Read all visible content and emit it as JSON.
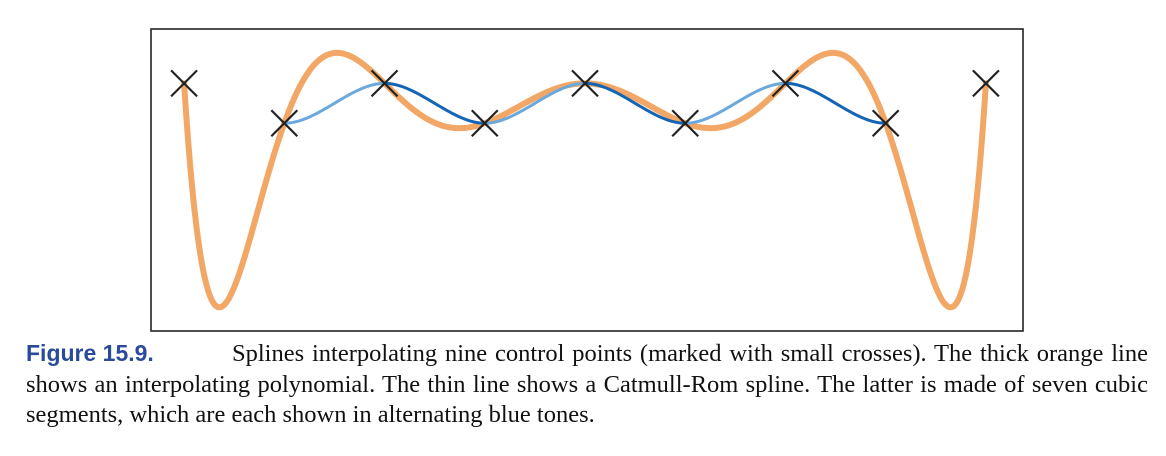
{
  "caption": {
    "label": "Figure 15.9.",
    "text": "Splines interpolating nine control points (marked with small crosses). The thick orange line shows an interpolating polynomial. The thin line shows a Catmull-Rom spline. The latter is made of seven cubic segments, which are each shown in alternating blue tones."
  },
  "colors": {
    "polynomial": "#f2a766",
    "segment_light": "#6ba9dc",
    "segment_dark": "#1565b5",
    "marker": "#222222",
    "frame": "#222222"
  },
  "chart_data": {
    "type": "line",
    "title": "",
    "xlabel": "",
    "ylabel": "",
    "grid": false,
    "xlim": [
      -0.33,
      8.37
    ],
    "ylim": [
      -2.05,
      0.45
    ],
    "control_points": {
      "x": [
        0,
        1,
        2,
        3,
        4,
        5,
        6,
        7,
        8
      ],
      "y": [
        0,
        -0.33,
        0,
        -0.33,
        0,
        -0.33,
        0,
        -0.33,
        0
      ]
    },
    "series": [
      {
        "kind": "interpolating-polynomial",
        "degree": 8
      },
      {
        "kind": "catmull-rom",
        "segments": 7
      }
    ]
  }
}
